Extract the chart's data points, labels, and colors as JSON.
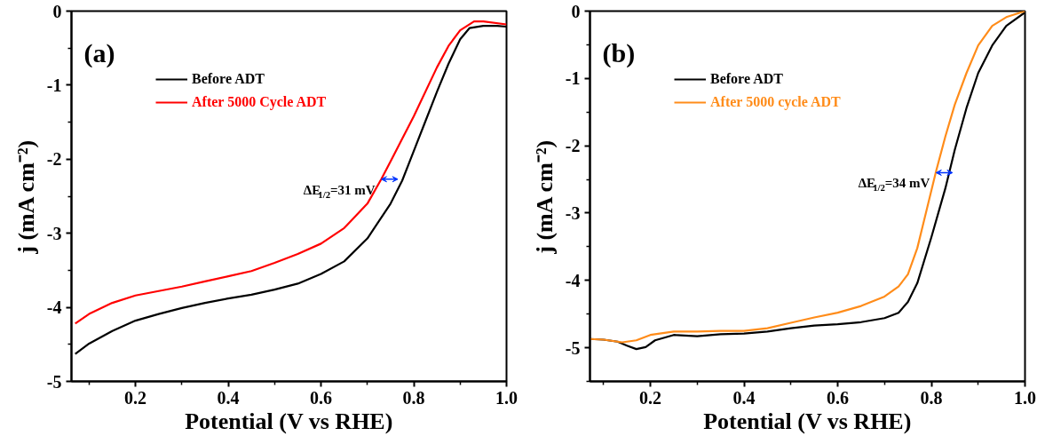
{
  "chart_data": [
    {
      "type": "line",
      "xlabel": "Potential (V vs RHE)",
      "ylabel": "j (mA cm⁻²)",
      "xlim": [
        0.062,
        1.0
      ],
      "ylim": [
        -5,
        0
      ],
      "xticks": [
        0.2,
        0.4,
        0.6,
        0.8,
        {
          "value": 1.0,
          "label": "1.0"
        }
      ],
      "yticks": [
        0,
        -1,
        -2,
        -3,
        -4,
        -5
      ],
      "grid": false,
      "legend": "top left",
      "line_style": "solid",
      "marker": "none",
      "annotations": [
        "(a)",
        {
          "text": "ΔE$_{1/2}$=31 mV",
          "x": 0.73,
          "y": -2.27
        }
      ],
      "series": [
        {
          "name": "Before ADT",
          "color": "#000000",
          "x": [
            0.07,
            0.1,
            0.15,
            0.2,
            0.25,
            0.3,
            0.35,
            0.4,
            0.45,
            0.5,
            0.55,
            0.6,
            0.65,
            0.7,
            0.75,
            0.775,
            0.8,
            0.825,
            0.85,
            0.875,
            0.9,
            0.92,
            0.95,
            0.98,
            1.0
          ],
          "values": [
            -4.63,
            -4.49,
            -4.32,
            -4.18,
            -4.09,
            -4.01,
            -3.94,
            -3.88,
            -3.83,
            -3.76,
            -3.68,
            -3.55,
            -3.38,
            -3.07,
            -2.6,
            -2.29,
            -1.89,
            -1.49,
            -1.09,
            -0.71,
            -0.38,
            -0.23,
            -0.2,
            -0.2,
            -0.21
          ]
        },
        {
          "name": "After 5000 Cycle ADT",
          "color": "#ff0000",
          "x": [
            0.07,
            0.1,
            0.15,
            0.2,
            0.25,
            0.3,
            0.35,
            0.4,
            0.45,
            0.5,
            0.55,
            0.6,
            0.65,
            0.7,
            0.73,
            0.75,
            0.8,
            0.85,
            0.875,
            0.9,
            0.93,
            0.95,
            1.0
          ],
          "values": [
            -4.22,
            -4.09,
            -3.94,
            -3.84,
            -3.78,
            -3.72,
            -3.65,
            -3.58,
            -3.51,
            -3.4,
            -3.28,
            -3.14,
            -2.93,
            -2.6,
            -2.27,
            -2.03,
            -1.42,
            -0.76,
            -0.47,
            -0.26,
            -0.14,
            -0.14,
            -0.18
          ]
        }
      ]
    },
    {
      "type": "line",
      "xlabel": "Potential (V vs RHE)",
      "ylabel": "j (mA cm⁻²)",
      "xlim": [
        0.071,
        1.0
      ],
      "ylim": [
        -5.5,
        0
      ],
      "xticks": [
        0.2,
        0.4,
        0.6,
        0.8,
        {
          "value": 1.0,
          "label": "1.0"
        }
      ],
      "yticks": [
        0,
        -1,
        -2,
        -3,
        -4,
        -5
      ],
      "grid": false,
      "legend": "top left",
      "line_style": "solid",
      "marker": "none",
      "annotations": [
        "(b)",
        {
          "text": "ΔE$_{1/2}$=34 mV",
          "x": 0.81,
          "y": -2.4
        }
      ],
      "series": [
        {
          "name": "Before ADT",
          "color": "#000000",
          "x": [
            0.071,
            0.1,
            0.13,
            0.15,
            0.17,
            0.19,
            0.21,
            0.25,
            0.3,
            0.35,
            0.4,
            0.45,
            0.5,
            0.55,
            0.6,
            0.65,
            0.7,
            0.73,
            0.75,
            0.77,
            0.8,
            0.83,
            0.85,
            0.875,
            0.9,
            0.93,
            0.96,
            1.0
          ],
          "values": [
            -4.87,
            -4.88,
            -4.91,
            -4.97,
            -5.02,
            -4.99,
            -4.89,
            -4.81,
            -4.83,
            -4.8,
            -4.79,
            -4.76,
            -4.71,
            -4.67,
            -4.65,
            -4.62,
            -4.56,
            -4.48,
            -4.32,
            -4.04,
            -3.36,
            -2.63,
            -2.06,
            -1.44,
            -0.92,
            -0.51,
            -0.22,
            -0.02
          ]
        },
        {
          "name": "After 5000 cycle ADT",
          "color": "#ff8c1a",
          "x": [
            0.071,
            0.1,
            0.14,
            0.17,
            0.2,
            0.25,
            0.3,
            0.35,
            0.4,
            0.45,
            0.5,
            0.55,
            0.6,
            0.65,
            0.7,
            0.73,
            0.75,
            0.77,
            0.79,
            0.81,
            0.83,
            0.85,
            0.875,
            0.9,
            0.93,
            0.96,
            1.0
          ],
          "values": [
            -4.87,
            -4.88,
            -4.92,
            -4.89,
            -4.81,
            -4.76,
            -4.76,
            -4.75,
            -4.75,
            -4.71,
            -4.63,
            -4.55,
            -4.48,
            -4.38,
            -4.24,
            -4.09,
            -3.91,
            -3.52,
            -2.95,
            -2.38,
            -1.86,
            -1.39,
            -0.92,
            -0.51,
            -0.22,
            -0.09,
            0.0
          ]
        }
      ]
    }
  ]
}
